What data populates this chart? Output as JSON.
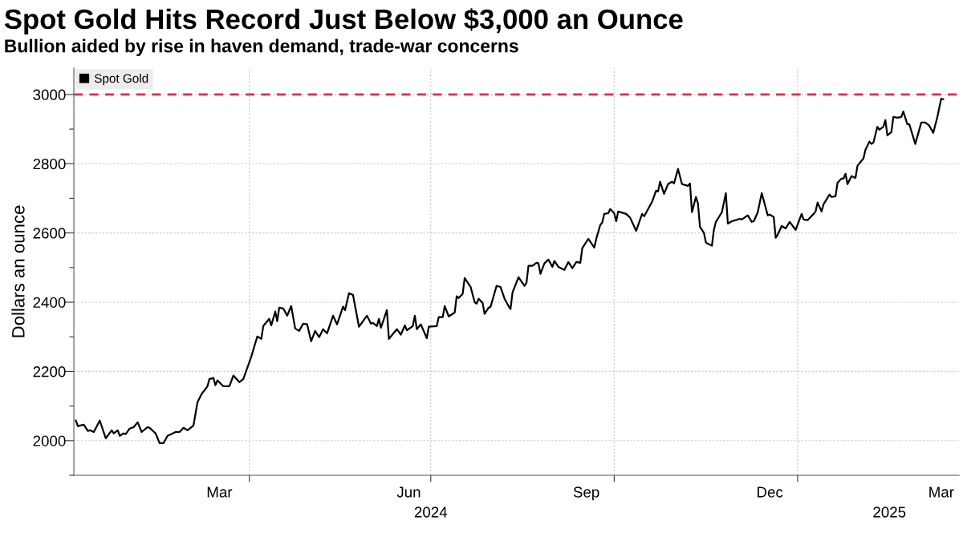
{
  "chart_data": {
    "type": "line",
    "title": "Spot Gold Hits Record Just Below $3,000 an Ounce",
    "subtitle": "Bullion aided by rise in haven demand, trade-war concerns",
    "ylabel": "Dollars an ounce",
    "x": [
      "2024-01-05",
      "2024-01-06",
      "2024-01-09",
      "2024-01-11",
      "2024-01-12",
      "2024-01-14",
      "2024-01-17",
      "2024-01-20",
      "2024-01-23",
      "2024-01-24",
      "2024-01-26",
      "2024-01-27",
      "2024-01-29",
      "2024-01-30",
      "2024-02-01",
      "2024-02-03",
      "2024-02-05",
      "2024-02-07",
      "2024-02-10",
      "2024-02-11",
      "2024-02-14",
      "2024-02-16",
      "2024-02-18",
      "2024-02-20",
      "2024-02-22",
      "2024-02-24",
      "2024-02-26",
      "2024-02-28",
      "2024-03-01",
      "2024-03-04",
      "2024-03-06",
      "2024-03-08",
      "2024-03-11",
      "2024-03-12",
      "2024-03-14",
      "2024-03-15",
      "2024-03-16",
      "2024-03-19",
      "2024-03-22",
      "2024-03-24",
      "2024-03-27",
      "2024-03-29",
      "2024-04-02",
      "2024-04-05",
      "2024-04-07",
      "2024-04-08",
      "2024-04-11",
      "2024-04-12",
      "2024-04-14",
      "2024-04-15",
      "2024-04-16",
      "2024-04-18",
      "2024-04-20",
      "2024-04-22",
      "2024-04-24",
      "2024-04-26",
      "2024-04-28",
      "2024-04-30",
      "2024-05-02",
      "2024-05-04",
      "2024-05-06",
      "2024-05-08",
      "2024-05-10",
      "2024-05-13",
      "2024-05-15",
      "2024-05-18",
      "2024-05-19",
      "2024-05-21",
      "2024-05-23",
      "2024-05-26",
      "2024-05-30",
      "2024-06-01",
      "2024-06-02",
      "2024-06-04",
      "2024-06-05",
      "2024-06-06",
      "2024-06-09",
      "2024-06-10",
      "2024-06-14",
      "2024-06-16",
      "2024-06-18",
      "2024-06-19",
      "2024-06-22",
      "2024-06-23",
      "2024-06-24",
      "2024-06-26",
      "2024-06-29",
      "2024-06-30",
      "2024-07-04",
      "2024-07-05",
      "2024-07-07",
      "2024-07-08",
      "2024-07-10",
      "2024-07-13",
      "2024-07-14",
      "2024-07-15",
      "2024-07-17",
      "2024-07-18",
      "2024-07-21",
      "2024-07-23",
      "2024-07-24",
      "2024-07-25",
      "2024-07-27",
      "2024-07-28",
      "2024-07-30",
      "2024-07-31",
      "2024-08-03",
      "2024-08-05",
      "2024-08-07",
      "2024-08-09",
      "2024-08-10",
      "2024-08-11",
      "2024-08-14",
      "2024-08-17",
      "2024-08-18",
      "2024-08-19",
      "2024-08-21",
      "2024-08-23",
      "2024-08-24",
      "2024-08-25",
      "2024-08-27",
      "2024-08-29",
      "2024-08-31",
      "2024-09-01",
      "2024-09-03",
      "2024-09-06",
      "2024-09-08",
      "2024-09-10",
      "2024-09-12",
      "2024-09-14",
      "2024-09-15",
      "2024-09-18",
      "2024-09-21",
      "2024-09-22",
      "2024-09-24",
      "2024-09-25",
      "2024-09-26",
      "2024-09-28",
      "2024-09-29",
      "2024-10-01",
      "2024-10-02",
      "2024-10-03",
      "2024-10-07",
      "2024-10-09",
      "2024-10-12",
      "2024-10-15",
      "2024-10-16",
      "2024-10-20",
      "2024-10-22",
      "2024-10-23",
      "2024-10-24",
      "2024-10-26",
      "2024-10-28",
      "2024-10-30",
      "2024-10-31",
      "2024-11-02",
      "2024-11-04",
      "2024-11-07",
      "2024-11-08",
      "2024-11-09",
      "2024-11-11",
      "2024-11-12",
      "2024-11-13",
      "2024-11-15",
      "2024-11-16",
      "2024-11-19",
      "2024-11-20",
      "2024-11-21",
      "2024-11-24",
      "2024-11-26",
      "2024-11-27",
      "2024-11-29",
      "2024-12-01",
      "2024-12-03",
      "2024-12-04",
      "2024-12-07",
      "2024-12-09",
      "2024-12-10",
      "2024-12-12",
      "2024-12-14",
      "2024-12-17",
      "2024-12-18",
      "2024-12-20",
      "2024-12-21",
      "2024-12-22",
      "2024-12-24",
      "2024-12-26",
      "2024-12-28",
      "2024-12-31",
      "2025-01-03",
      "2025-01-04",
      "2025-01-06",
      "2025-01-09",
      "2025-01-10",
      "2025-01-11",
      "2025-01-13",
      "2025-01-14",
      "2025-01-17",
      "2025-01-18",
      "2025-01-20",
      "2025-01-21",
      "2025-01-23",
      "2025-01-24",
      "2025-01-25",
      "2025-01-26",
      "2025-01-28",
      "2025-01-30",
      "2025-01-31",
      "2025-02-01",
      "2025-02-03",
      "2025-02-04",
      "2025-02-06",
      "2025-02-07",
      "2025-02-08",
      "2025-02-10",
      "2025-02-11",
      "2025-02-13",
      "2025-02-14",
      "2025-02-15",
      "2025-02-17",
      "2025-02-18",
      "2025-02-20",
      "2025-02-22",
      "2025-02-23",
      "2025-02-25",
      "2025-02-26",
      "2025-03-01",
      "2025-03-04",
      "2025-03-06",
      "2025-03-08",
      "2025-03-10",
      "2025-03-12",
      "2025-03-14",
      "2025-03-15"
    ],
    "series": [
      {
        "name": "Spot Gold",
        "color": "#000000",
        "values": [
          2058,
          2042,
          2046,
          2028,
          2030,
          2025,
          2058,
          2007,
          2030,
          2021,
          2030,
          2014,
          2021,
          2019,
          2035,
          2039,
          2053,
          2025,
          2039,
          2037,
          2021,
          1993,
          1993,
          2014,
          2019,
          2025,
          2025,
          2037,
          2030,
          2044,
          2111,
          2134,
          2157,
          2178,
          2181,
          2160,
          2174,
          2157,
          2157,
          2188,
          2169,
          2178,
          2243,
          2301,
          2294,
          2331,
          2352,
          2333,
          2373,
          2345,
          2384,
          2382,
          2361,
          2389,
          2324,
          2317,
          2338,
          2336,
          2287,
          2317,
          2299,
          2322,
          2310,
          2361,
          2336,
          2387,
          2377,
          2426,
          2421,
          2329,
          2361,
          2338,
          2340,
          2331,
          2352,
          2326,
          2377,
          2294,
          2322,
          2306,
          2333,
          2319,
          2331,
          2361,
          2322,
          2336,
          2296,
          2329,
          2331,
          2357,
          2357,
          2389,
          2359,
          2370,
          2417,
          2412,
          2424,
          2470,
          2444,
          2400,
          2396,
          2410,
          2398,
          2366,
          2384,
          2387,
          2447,
          2444,
          2410,
          2389,
          2380,
          2428,
          2472,
          2447,
          2456,
          2505,
          2505,
          2514,
          2512,
          2482,
          2512,
          2523,
          2502,
          2519,
          2502,
          2493,
          2516,
          2498,
          2516,
          2514,
          2556,
          2583,
          2558,
          2583,
          2623,
          2630,
          2655,
          2657,
          2669,
          2657,
          2634,
          2662,
          2655,
          2644,
          2606,
          2655,
          2648,
          2690,
          2722,
          2720,
          2748,
          2713,
          2741,
          2748,
          2743,
          2785,
          2741,
          2736,
          2743,
          2660,
          2704,
          2685,
          2618,
          2600,
          2572,
          2563,
          2609,
          2632,
          2660,
          2715,
          2627,
          2634,
          2637,
          2641,
          2639,
          2651,
          2632,
          2634,
          2660,
          2715,
          2651,
          2653,
          2646,
          2586,
          2595,
          2620,
          2613,
          2632,
          2609,
          2655,
          2639,
          2637,
          2655,
          2662,
          2688,
          2662,
          2683,
          2711,
          2704,
          2706,
          2745,
          2757,
          2757,
          2771,
          2741,
          2764,
          2759,
          2794,
          2801,
          2815,
          2840,
          2864,
          2857,
          2861,
          2907,
          2898,
          2907,
          2926,
          2882,
          2891,
          2935,
          2933,
          2935,
          2951,
          2914,
          2914,
          2857,
          2919,
          2919,
          2910,
          2889,
          2933,
          2988,
          2986
        ]
      }
    ],
    "xlim": [
      "2024-01-04",
      "2025-03-23"
    ],
    "xticks": [
      {
        "value": "2024-03-17",
        "label": "Mar"
      },
      {
        "value": "2024-04-01",
        "label": null
      },
      {
        "value": "2024-06-20",
        "label": "Jun"
      },
      {
        "value": "2024-07-01",
        "label": null
      },
      {
        "value": "2024-09-17",
        "label": "Sep"
      },
      {
        "value": "2024-10-01",
        "label": null
      },
      {
        "value": "2024-12-18",
        "label": "Dec"
      },
      {
        "value": "2025-01-01",
        "label": null
      },
      {
        "value": "2025-03-14",
        "label": "Mar"
      }
    ],
    "x2lim": [
      "2024-01-04",
      "2025-03-23"
    ],
    "x2ticks": [
      {
        "value": "2024-07-01",
        "label": "2024"
      },
      {
        "value": "2025-02-16",
        "label": "2025"
      }
    ],
    "ylim": [
      1900,
      3076
    ],
    "yticks": [
      {
        "value": 1900,
        "label": null
      },
      2000,
      {
        "value": 2100,
        "label": null
      },
      2200,
      {
        "value": 2300,
        "label": null
      },
      2400,
      {
        "value": 2500,
        "label": null
      },
      2600,
      {
        "value": 2700,
        "label": null
      },
      2800,
      {
        "value": 2900,
        "label": null
      },
      3000
    ],
    "ref_lines": [
      {
        "axis": "y",
        "value": 3000,
        "color": "#e8294c",
        "line_style": "dashed"
      }
    ],
    "grid": true,
    "legend": "top left",
    "line_style": "solid",
    "marker": "none"
  }
}
